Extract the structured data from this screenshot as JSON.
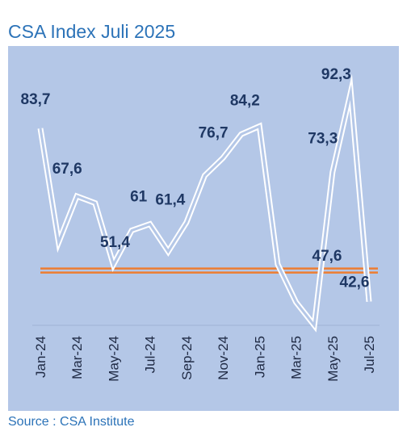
{
  "title": "CSA Index Juli 2025",
  "source": "Source : CSA Institute",
  "colors": {
    "plot_background": "#b4c7e7",
    "line_outline": "#ffffff",
    "line_inner": "#b4c7e7",
    "reference_line": "#ed7d31",
    "label_text": "#1f3864",
    "title_text": "#2c73b8"
  },
  "chart_data": {
    "type": "line",
    "title": "CSA Index Juli 2025",
    "x": [
      "Jan-24",
      "Feb-24",
      "Mar-24",
      "Apr-24",
      "May-24",
      "Jun-24",
      "Jul-24",
      "Aug-24",
      "Sep-24",
      "Oct-24",
      "Nov-24",
      "Dec-24",
      "Jan-25",
      "Feb-25",
      "Mar-25",
      "Apr-25",
      "May-25",
      "Jun-25",
      "Jul-25"
    ],
    "x_tick_labels": [
      "Jan-24",
      "Mar-24",
      "May-24",
      "Jul-24",
      "Sep-24",
      "Nov-24",
      "Jan-25",
      "Mar-25",
      "May-25",
      "Jul-25"
    ],
    "series": [
      {
        "values": [
          83.7,
          56.7,
          67.6,
          66.0,
          51.4,
          59.5,
          61.0,
          54.5,
          61.4,
          72.5,
          76.7,
          82.3,
          84.2,
          51.5,
          42.5,
          37.0,
          73.3,
          92.3,
          42.6
        ]
      }
    ],
    "data_labels": [
      {
        "x": "Jan-24",
        "text": "83,7"
      },
      {
        "x": "Mar-24",
        "text": "67,6"
      },
      {
        "x": "May-24",
        "text": "51,4"
      },
      {
        "x": "Jul-24",
        "text": "61"
      },
      {
        "x": "Sep-24",
        "text": "61,4"
      },
      {
        "x": "Nov-24",
        "text": "76,7"
      },
      {
        "x": "Jan-25",
        "text": "84,2"
      },
      {
        "x": "May-25",
        "text": "73,3"
      },
      {
        "x": "Jun-25",
        "text": "92,3"
      },
      {
        "x": "Jul-25",
        "text": "42,6"
      }
    ],
    "reference_line": {
      "value": 50,
      "label": "47,6"
    },
    "ylim": [
      37,
      95
    ],
    "grid": false,
    "legend": "none"
  }
}
